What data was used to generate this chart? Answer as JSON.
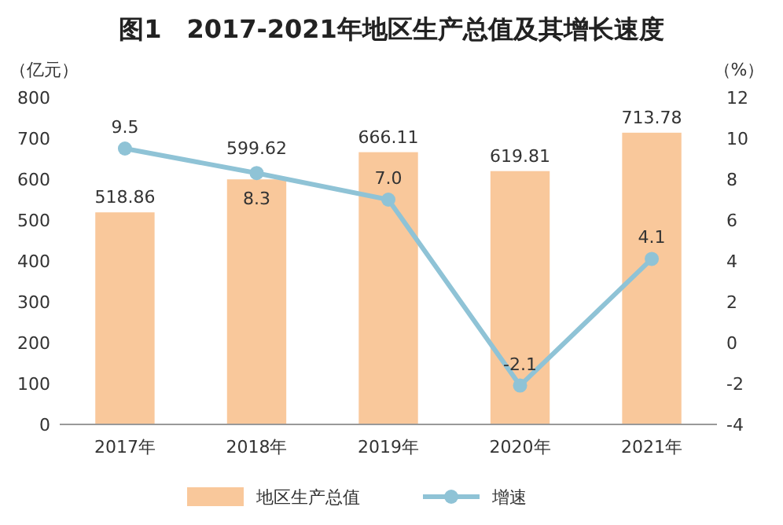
{
  "chart_data": {
    "type": "bar",
    "title": "图1　2017-2021年地区生产总值及其增长速度",
    "ylabel": "（亿元）",
    "y2label": "（%）",
    "categories": [
      "2017年",
      "2018年",
      "2019年",
      "2020年",
      "2021年"
    ],
    "series": [
      {
        "name": "地区生产总值",
        "color": "#f9c89b",
        "values": [
          518.86,
          599.62,
          666.11,
          619.81,
          713.78
        ]
      },
      {
        "name": "增速",
        "type": "line",
        "axis": "y2",
        "color": "#8fc3d6",
        "values": [
          9.5,
          8.3,
          7.0,
          -2.1,
          4.1
        ],
        "value_labels": [
          "9.5",
          "8.3",
          "7.0",
          "-2.1",
          "4.1"
        ]
      }
    ],
    "ylim": [
      0,
      800
    ],
    "yticks": [
      0,
      100,
      200,
      300,
      400,
      500,
      600,
      700,
      800
    ],
    "y2lim": [
      -4,
      12
    ],
    "y2ticks": [
      -4,
      -2,
      0,
      2,
      4,
      6,
      8,
      10,
      12
    ],
    "data_labels": true,
    "legend": "bottom",
    "marker": "circle",
    "grid": false
  }
}
